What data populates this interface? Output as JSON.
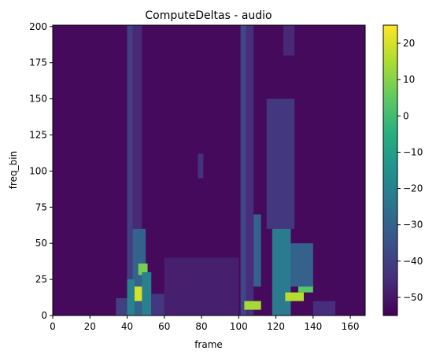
{
  "chart_data": {
    "type": "heatmap",
    "title": "ComputeDeltas - audio",
    "xlabel": "frame",
    "ylabel": "freq_bin",
    "xlim": [
      0,
      168
    ],
    "ylim": [
      0,
      201
    ],
    "x_ticks": [
      0,
      20,
      40,
      60,
      80,
      100,
      120,
      140,
      160
    ],
    "y_ticks": [
      0,
      25,
      50,
      75,
      100,
      125,
      150,
      175,
      200
    ],
    "colorbar": {
      "colormap": "viridis",
      "vmin": -55,
      "vmax": 25,
      "ticks": [
        20,
        10,
        0,
        -10,
        -20,
        -30,
        -40,
        -50
      ]
    },
    "background_value": -53,
    "regions": [
      {
        "x": [
          40,
          43
        ],
        "y": [
          0,
          201
        ],
        "value": -40
      },
      {
        "x": [
          43,
          48
        ],
        "y": [
          60,
          201
        ],
        "value": -46
      },
      {
        "x": [
          43,
          50
        ],
        "y": [
          0,
          60
        ],
        "value": -30
      },
      {
        "x": [
          44,
          48
        ],
        "y": [
          10,
          20
        ],
        "value": 20
      },
      {
        "x": [
          46,
          51
        ],
        "y": [
          28,
          36
        ],
        "value": 8
      },
      {
        "x": [
          48,
          53
        ],
        "y": [
          0,
          30
        ],
        "value": -20
      },
      {
        "x": [
          40,
          44
        ],
        "y": [
          0,
          25
        ],
        "value": -20
      },
      {
        "x": [
          34,
          40
        ],
        "y": [
          0,
          12
        ],
        "value": -40
      },
      {
        "x": [
          53,
          60
        ],
        "y": [
          0,
          15
        ],
        "value": -42
      },
      {
        "x": [
          60,
          100
        ],
        "y": [
          0,
          40
        ],
        "value": -48
      },
      {
        "x": [
          78,
          81
        ],
        "y": [
          95,
          112
        ],
        "value": -44
      },
      {
        "x": [
          101,
          104
        ],
        "y": [
          0,
          201
        ],
        "value": -38
      },
      {
        "x": [
          104,
          108
        ],
        "y": [
          0,
          201
        ],
        "value": -45
      },
      {
        "x": [
          103,
          112
        ],
        "y": [
          4,
          10
        ],
        "value": 14
      },
      {
        "x": [
          108,
          112
        ],
        "y": [
          20,
          70
        ],
        "value": -30
      },
      {
        "x": [
          115,
          130
        ],
        "y": [
          60,
          150
        ],
        "value": -42
      },
      {
        "x": [
          118,
          128
        ],
        "y": [
          0,
          60
        ],
        "value": -22
      },
      {
        "x": [
          125,
          135
        ],
        "y": [
          10,
          16
        ],
        "value": 16
      },
      {
        "x": [
          132,
          140
        ],
        "y": [
          16,
          22
        ],
        "value": 4
      },
      {
        "x": [
          128,
          140
        ],
        "y": [
          20,
          50
        ],
        "value": -30
      },
      {
        "x": [
          140,
          152
        ],
        "y": [
          0,
          10
        ],
        "value": -45
      },
      {
        "x": [
          124,
          130
        ],
        "y": [
          180,
          201
        ],
        "value": -46
      }
    ]
  }
}
